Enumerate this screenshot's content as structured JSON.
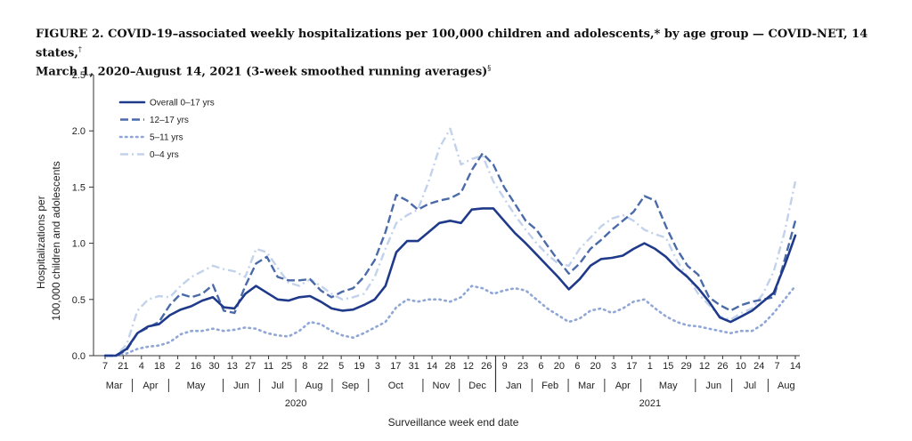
{
  "title_line1": "FIGURE 2. COVID-19–associated weekly hospitalizations per 100,000 children and adolescents,* by age group — COVID-NET, 14 states,",
  "title_line1_mark": "†",
  "title_line2": "March 1, 2020–August 14, 2021 (3-week smoothed running averages)",
  "title_line2_mark": "§",
  "colors": {
    "overall": "#1f3a8a",
    "age12_17": "#4a6aa8",
    "age5_11": "#8fa6d6",
    "age0_4": "#c3d2ec"
  },
  "chart_data": {
    "type": "line",
    "xlabel": "Surveillance week end date",
    "ylabel_line1": "Hospitalizations per",
    "ylabel_line2": "100,000 children and adolescents",
    "ylim": [
      0,
      2.5
    ],
    "yticks": [
      "0.0",
      "0.5",
      "1.0",
      "1.5",
      "2.0",
      "2.5"
    ],
    "ytick_values": [
      0,
      0.5,
      1.0,
      1.5,
      2.0,
      2.5
    ],
    "x_day_labels": [
      "7",
      "21",
      "4",
      "18",
      "2",
      "16",
      "30",
      "13",
      "27",
      "11",
      "25",
      "8",
      "22",
      "5",
      "19",
      "3",
      "17",
      "31",
      "14",
      "28",
      "12",
      "26",
      "9",
      "23",
      "6",
      "20",
      "6",
      "20",
      "3",
      "17",
      "1",
      "15",
      "29",
      "12",
      "26",
      "10",
      "24",
      "7",
      "14"
    ],
    "months": [
      {
        "label": "Mar",
        "start": 0,
        "end": 1
      },
      {
        "label": "Apr",
        "start": 2,
        "end": 3
      },
      {
        "label": "May",
        "start": 4,
        "end": 6
      },
      {
        "label": "Jun",
        "start": 7,
        "end": 8
      },
      {
        "label": "Jul",
        "start": 9,
        "end": 10
      },
      {
        "label": "Aug",
        "start": 11,
        "end": 12
      },
      {
        "label": "Sep",
        "start": 13,
        "end": 14
      },
      {
        "label": "Oct",
        "start": 15,
        "end": 17
      },
      {
        "label": "Nov",
        "start": 18,
        "end": 19
      },
      {
        "label": "Dec",
        "start": 20,
        "end": 21
      },
      {
        "label": "Jan",
        "start": 22,
        "end": 23
      },
      {
        "label": "Feb",
        "start": 24,
        "end": 25
      },
      {
        "label": "Mar",
        "start": 26,
        "end": 27
      },
      {
        "label": "Apr",
        "start": 28,
        "end": 29
      },
      {
        "label": "May",
        "start": 30,
        "end": 32
      },
      {
        "label": "Jun",
        "start": 33,
        "end": 34
      },
      {
        "label": "Jul",
        "start": 35,
        "end": 36
      },
      {
        "label": "Aug",
        "start": 37,
        "end": 38
      }
    ],
    "years": [
      {
        "label": "2020",
        "start": 0,
        "end": 21
      },
      {
        "label": "2021",
        "start": 22,
        "end": 38
      }
    ],
    "series": [
      {
        "name": "Overall 0–17 yrs",
        "style": "solid",
        "values": [
          0.0,
          0.0,
          0.06,
          0.2,
          0.26,
          0.28,
          0.36,
          0.41,
          0.44,
          0.49,
          0.52,
          0.43,
          0.42,
          0.55,
          0.62,
          0.56,
          0.5,
          0.49,
          0.52,
          0.53,
          0.48,
          0.42,
          0.4,
          0.41,
          0.45,
          0.5,
          0.62,
          0.92,
          1.02,
          1.02,
          1.1,
          1.18,
          1.2,
          1.18,
          1.3,
          1.31,
          1.31,
          1.2,
          1.09,
          1.0,
          0.9,
          0.8,
          0.7,
          0.59,
          0.68,
          0.8,
          0.86,
          0.87,
          0.89,
          0.95,
          1.0,
          0.95,
          0.88,
          0.78,
          0.7,
          0.6,
          0.48,
          0.34,
          0.3,
          0.35,
          0.4,
          0.48,
          0.56,
          0.8,
          1.07
        ]
      },
      {
        "name": "12–17 yrs",
        "style": "dash",
        "values": [
          0.0,
          0.0,
          0.05,
          0.2,
          0.25,
          0.3,
          0.45,
          0.55,
          0.52,
          0.55,
          0.63,
          0.4,
          0.38,
          0.62,
          0.82,
          0.88,
          0.7,
          0.67,
          0.67,
          0.68,
          0.58,
          0.52,
          0.57,
          0.6,
          0.7,
          0.85,
          1.1,
          1.43,
          1.38,
          1.3,
          1.35,
          1.38,
          1.4,
          1.45,
          1.65,
          1.8,
          1.7,
          1.5,
          1.35,
          1.2,
          1.12,
          0.98,
          0.85,
          0.73,
          0.82,
          0.95,
          1.03,
          1.12,
          1.2,
          1.28,
          1.42,
          1.38,
          1.15,
          0.95,
          0.8,
          0.72,
          0.52,
          0.45,
          0.4,
          0.45,
          0.48,
          0.5,
          0.52,
          0.85,
          1.2
        ]
      },
      {
        "name": "5–11 yrs",
        "style": "dot",
        "values": [
          0.0,
          0.0,
          0.02,
          0.06,
          0.08,
          0.09,
          0.12,
          0.19,
          0.22,
          0.22,
          0.24,
          0.22,
          0.23,
          0.25,
          0.24,
          0.2,
          0.18,
          0.17,
          0.22,
          0.3,
          0.28,
          0.22,
          0.18,
          0.16,
          0.2,
          0.25,
          0.3,
          0.43,
          0.5,
          0.48,
          0.5,
          0.5,
          0.48,
          0.52,
          0.62,
          0.6,
          0.55,
          0.58,
          0.6,
          0.58,
          0.5,
          0.42,
          0.36,
          0.3,
          0.33,
          0.4,
          0.42,
          0.38,
          0.42,
          0.48,
          0.5,
          0.42,
          0.35,
          0.3,
          0.27,
          0.26,
          0.24,
          0.22,
          0.2,
          0.22,
          0.22,
          0.28,
          0.38,
          0.5,
          0.62
        ]
      },
      {
        "name": "0–4 yrs",
        "style": "dashdot",
        "values": [
          0.0,
          0.0,
          0.1,
          0.4,
          0.5,
          0.53,
          0.52,
          0.62,
          0.7,
          0.75,
          0.8,
          0.77,
          0.75,
          0.7,
          0.95,
          0.92,
          0.78,
          0.65,
          0.62,
          0.68,
          0.62,
          0.55,
          0.5,
          0.52,
          0.55,
          0.7,
          0.95,
          1.18,
          1.25,
          1.3,
          1.55,
          1.85,
          2.02,
          1.7,
          1.75,
          1.78,
          1.55,
          1.4,
          1.25,
          1.12,
          1.0,
          0.9,
          0.82,
          0.8,
          0.95,
          1.05,
          1.15,
          1.22,
          1.25,
          1.2,
          1.12,
          1.08,
          1.05,
          0.85,
          0.7,
          0.55,
          0.45,
          0.35,
          0.32,
          0.38,
          0.42,
          0.55,
          0.75,
          1.1,
          1.55
        ]
      }
    ],
    "legend_position": "top-left",
    "grid": false
  }
}
